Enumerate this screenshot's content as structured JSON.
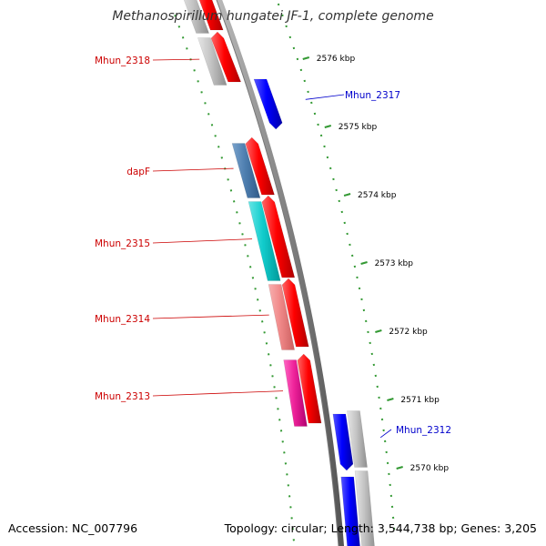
{
  "title": "Methanospirillum hungatei JF-1, complete genome",
  "footer": {
    "accession": "Accession: NC_007796",
    "summary": "Topology: circular; Length: 3,544,738 bp; Genes: 3,205"
  },
  "colors": {
    "forward_cds": "#ff0000",
    "reverse_cds": "#0000ff",
    "gene_label_left": "#cc0000",
    "gene_label_right": "#0000cc",
    "backbone": "#888888",
    "ticks": "#339933",
    "cog_grey": "#c0c0c0",
    "cog_steelblue": "#4f7fb0",
    "cog_cyan": "#11cccc",
    "cog_salmon": "#f08888",
    "cog_pink": "#ee2299"
  },
  "scale_labels": [
    "2576 kbp",
    "2575 kbp",
    "2574 kbp",
    "2573 kbp",
    "2572 kbp",
    "2571 kbp",
    "2570 kbp"
  ],
  "genes": [
    {
      "name": "Mhun_2318",
      "strand": "+",
      "cog": "cog_grey"
    },
    {
      "name": "Mhun_2317",
      "strand": "-",
      "cog": ""
    },
    {
      "name": "dapF",
      "strand": "+",
      "cog": "cog_steelblue"
    },
    {
      "name": "Mhun_2315",
      "strand": "+",
      "cog": "cog_cyan"
    },
    {
      "name": "Mhun_2314",
      "strand": "+",
      "cog": "cog_salmon"
    },
    {
      "name": "Mhun_2313",
      "strand": "+",
      "cog": "cog_pink"
    },
    {
      "name": "Mhun_2312",
      "strand": "-",
      "cog": "cog_grey"
    }
  ]
}
